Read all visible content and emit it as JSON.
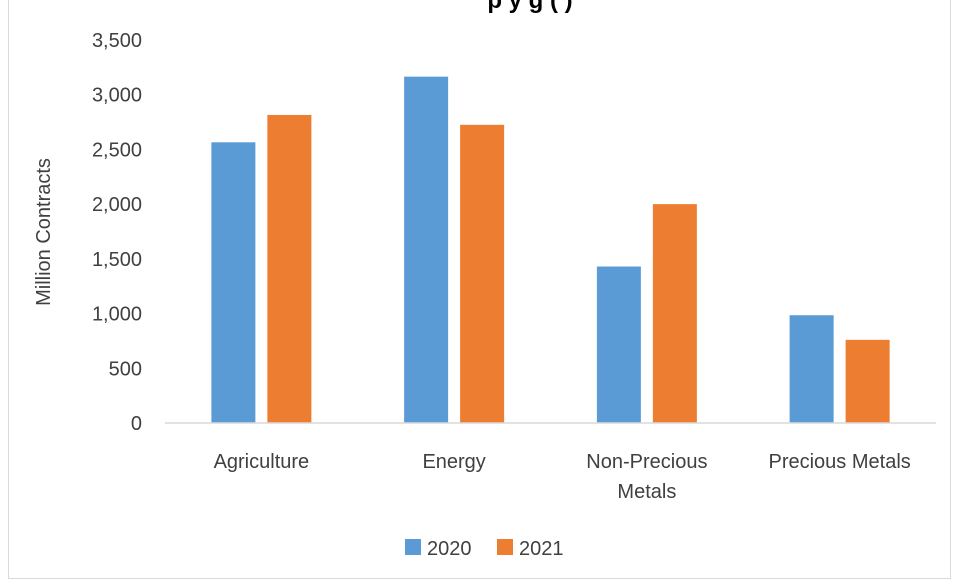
{
  "chart_data": {
    "type": "bar",
    "title": "p                                         y g      (                )",
    "ylabel": "Million Contracts",
    "xlabel": "",
    "ylim": [
      0,
      3500
    ],
    "yticks": [
      0,
      500,
      1000,
      1500,
      2000,
      2500,
      3000,
      3500
    ],
    "ytick_labels": [
      "0",
      "500",
      "1,000",
      "1,500",
      "2,000",
      "2,500",
      "3,000",
      "3,500"
    ],
    "categories": [
      "Agriculture",
      "Energy",
      "Non-Precious Metals",
      "Precious Metals"
    ],
    "category_lines": [
      [
        "Agriculture"
      ],
      [
        "Energy"
      ],
      [
        "Non-Precious",
        "Metals"
      ],
      [
        "Precious Metals"
      ]
    ],
    "series": [
      {
        "name": "2020",
        "color": "#5b9bd5",
        "values": [
          2565,
          3165,
          1430,
          985
        ]
      },
      {
        "name": "2021",
        "color": "#ed7d31",
        "values": [
          2815,
          2725,
          2000,
          760
        ]
      }
    ],
    "grid": false,
    "legend": "bottom"
  }
}
